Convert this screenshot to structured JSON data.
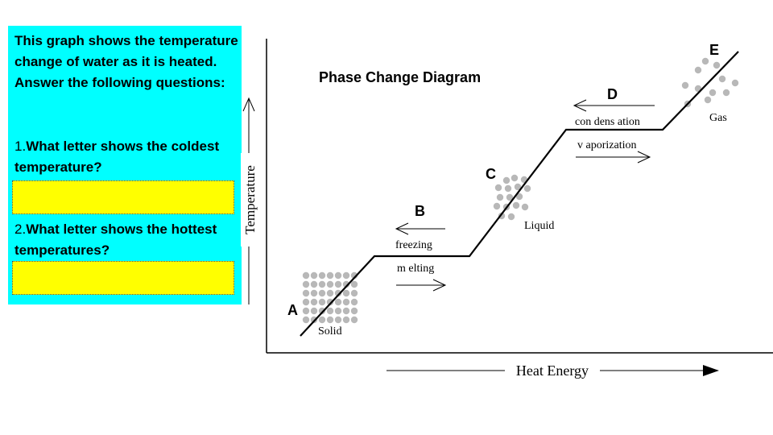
{
  "panel": {
    "intro": "This graph shows the temperature change of water as it is heated. Answer the following questions:",
    "q1_number": "1.",
    "q1_text": "What letter shows the coldest temperature?",
    "q1_answer": "",
    "q2_number": "2.",
    "q2_text": "What letter shows the hottest temperatures?",
    "q2_answer": "",
    "bg_color": "#00FFFF",
    "answer_color": "#FFFF00"
  },
  "diagram": {
    "title": "Phase Change Diagram",
    "y_axis_label": "Temperature",
    "x_axis_label": "Heat Energy",
    "points": {
      "a": "A",
      "b": "B",
      "c": "C",
      "d": "D",
      "e": "E"
    },
    "states": {
      "solid": "Solid",
      "liquid": "Liquid",
      "gas": "Gas"
    },
    "transitions": {
      "freezing": "freezing",
      "melting": "m elting",
      "condensation": "con dens ation",
      "vaporization": "v aporization"
    }
  }
}
